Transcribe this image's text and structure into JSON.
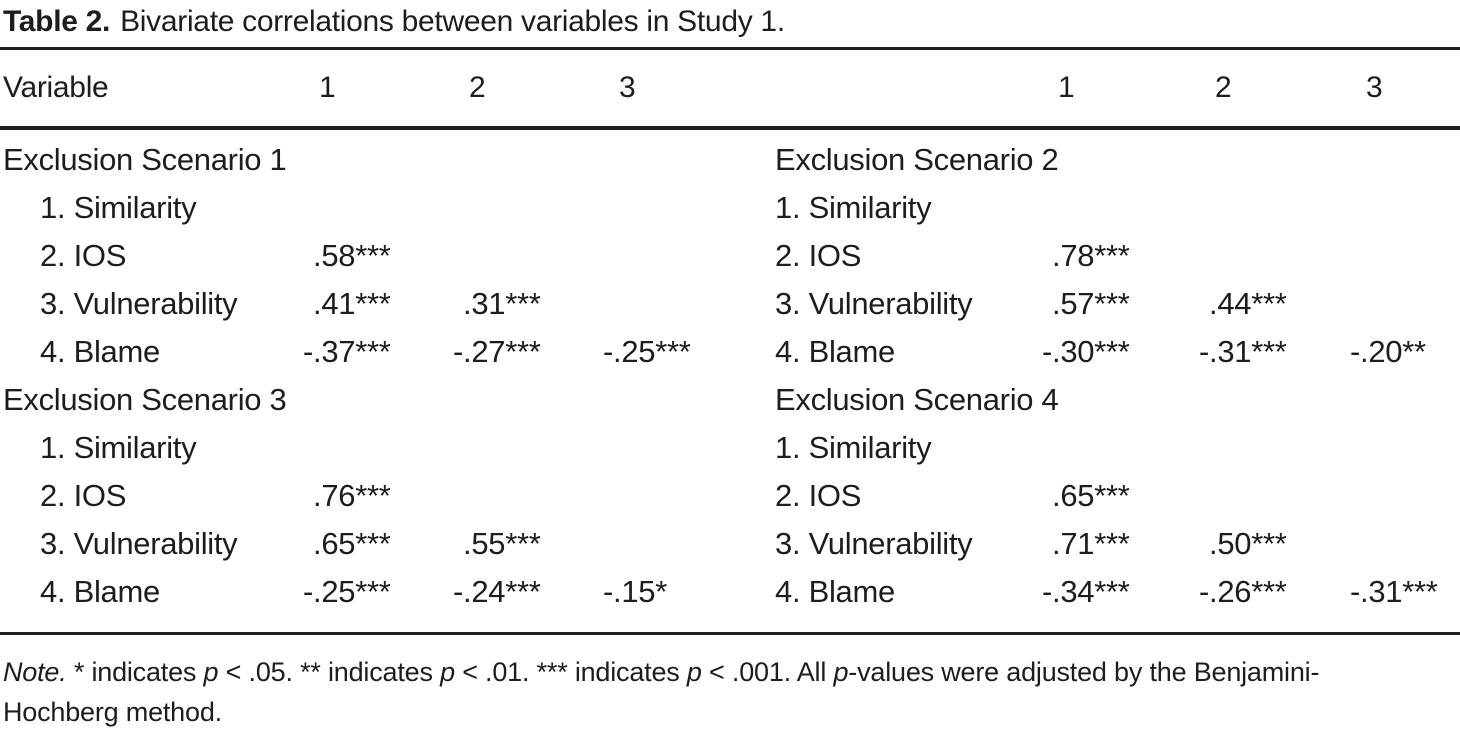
{
  "title": {
    "number": "Table 2.",
    "caption": "Bivariate correlations between variables in Study 1."
  },
  "header": {
    "variable_label": "Variable",
    "left_columns": [
      "1",
      "2",
      "3"
    ],
    "right_columns": [
      "1",
      "2",
      "3"
    ]
  },
  "panels": [
    {
      "name": "Exclusion Scenario 1",
      "rows": [
        {
          "label": "1. Similarity",
          "values": [
            "",
            "",
            ""
          ]
        },
        {
          "label": "2. IOS",
          "values": [
            ".58***",
            "",
            ""
          ]
        },
        {
          "label": "3. Vulnerability",
          "values": [
            ".41***",
            ".31***",
            ""
          ]
        },
        {
          "label": "4. Blame",
          "values": [
            "-.37***",
            "-.27***",
            "-.25***"
          ]
        }
      ]
    },
    {
      "name": "Exclusion Scenario 2",
      "rows": [
        {
          "label": "1. Similarity",
          "values": [
            "",
            "",
            ""
          ]
        },
        {
          "label": "2. IOS",
          "values": [
            ".78***",
            "",
            ""
          ]
        },
        {
          "label": "3. Vulnerability",
          "values": [
            ".57***",
            ".44***",
            ""
          ]
        },
        {
          "label": "4. Blame",
          "values": [
            "-.30***",
            "-.31***",
            "-.20**"
          ]
        }
      ]
    },
    {
      "name": "Exclusion Scenario 3",
      "rows": [
        {
          "label": "1. Similarity",
          "values": [
            "",
            "",
            ""
          ]
        },
        {
          "label": "2. IOS",
          "values": [
            ".76***",
            "",
            ""
          ]
        },
        {
          "label": "3. Vulnerability",
          "values": [
            ".65***",
            ".55***",
            ""
          ]
        },
        {
          "label": "4. Blame",
          "values": [
            "-.25***",
            "-.24***",
            "-.15*"
          ]
        }
      ]
    },
    {
      "name": "Exclusion Scenario 4",
      "rows": [
        {
          "label": "1. Similarity",
          "values": [
            "",
            "",
            ""
          ]
        },
        {
          "label": "2. IOS",
          "values": [
            ".65***",
            "",
            ""
          ]
        },
        {
          "label": "3. Vulnerability",
          "values": [
            ".71***",
            ".50***",
            ""
          ]
        },
        {
          "label": "4. Blame",
          "values": [
            "-.34***",
            "-.26***",
            "-.31***"
          ]
        }
      ]
    }
  ],
  "note": {
    "label": "Note.",
    "p": "p",
    "s1": " * indicates ",
    "s2": " < .05. ** indicates ",
    "s3": " < .01. *** indicates ",
    "s4": " < .001. All ",
    "s5": "-values were adjusted by the Benjamini-",
    "line2": "Hochberg method."
  }
}
